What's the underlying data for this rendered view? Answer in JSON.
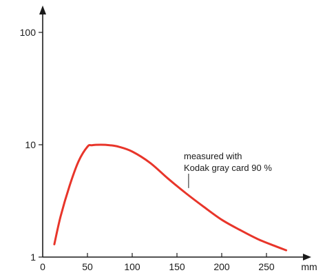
{
  "chart_data": {
    "type": "line",
    "title": "",
    "xlabel": "mm",
    "ylabel": "",
    "xlim": [
      0,
      270
    ],
    "ylim": [
      1,
      100
    ],
    "y_scale": "log",
    "grid": false,
    "legend": "none",
    "x_ticks": [
      0,
      50,
      100,
      150,
      200,
      250
    ],
    "x_tick_labels": [
      "0",
      "50",
      "100",
      "150",
      "200",
      "250"
    ],
    "y_ticks": [
      1,
      10,
      100
    ],
    "y_tick_labels": [
      "1",
      "10",
      "100"
    ],
    "annotation": {
      "lines": [
        "measured with",
        "Kodak gray card 90 %"
      ],
      "x": 163,
      "y": 4.0
    },
    "series": [
      {
        "color": "#e8352a",
        "x": [
          13,
          20,
          30,
          40,
          50,
          55,
          65,
          75,
          85,
          100,
          120,
          140,
          160,
          180,
          200,
          220,
          240,
          260,
          272
        ],
        "y": [
          1.3,
          2.3,
          4.3,
          7.1,
          9.6,
          9.9,
          10.0,
          9.9,
          9.6,
          8.7,
          6.9,
          5.0,
          3.7,
          2.8,
          2.15,
          1.75,
          1.45,
          1.25,
          1.15
        ]
      }
    ]
  }
}
